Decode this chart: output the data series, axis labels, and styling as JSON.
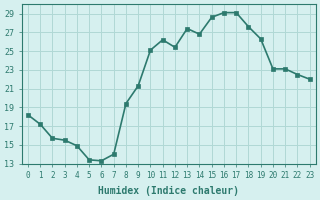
{
  "x": [
    0,
    1,
    2,
    3,
    4,
    5,
    6,
    7,
    8,
    9,
    10,
    11,
    12,
    13,
    14,
    15,
    16,
    17,
    18,
    19,
    20,
    21,
    22,
    23
  ],
  "y": [
    18.2,
    17.2,
    15.7,
    15.5,
    14.9,
    13.4,
    13.3,
    14.0,
    19.4,
    21.3,
    25.1,
    26.2,
    25.4,
    27.4,
    26.8,
    28.6,
    29.1,
    29.1,
    27.6,
    26.3,
    23.1,
    23.1,
    22.5,
    22.0
  ],
  "xlabel": "Humidex (Indice chaleur)",
  "line_color": "#2d7a6e",
  "marker_color": "#2d7a6e",
  "bg_color": "#d6f0ef",
  "grid_color": "#b0d8d5",
  "text_color": "#2d7a6e",
  "xlim": [
    -0.5,
    23.5
  ],
  "ylim": [
    13,
    30
  ],
  "yticks": [
    13,
    15,
    17,
    19,
    21,
    23,
    25,
    27,
    29
  ],
  "xticks": [
    0,
    1,
    2,
    3,
    4,
    5,
    6,
    7,
    8,
    9,
    10,
    11,
    12,
    13,
    14,
    15,
    16,
    17,
    18,
    19,
    20,
    21,
    22,
    23
  ]
}
